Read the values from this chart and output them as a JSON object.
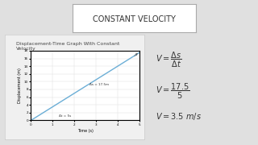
{
  "title": "CONSTANT VELOCITY",
  "bg_color": "#e0e0e0",
  "panel_color": "#f0f0f0",
  "graph_title": "Displacement-Time Graph With Constant\nVelocity",
  "xlabel": "Time (s)",
  "ylabel": "Displacement (m)",
  "x_data": [
    0,
    5
  ],
  "y_data": [
    0,
    17.5
  ],
  "x_ticks": [
    0,
    1,
    2,
    3,
    4,
    5
  ],
  "y_ticks": [
    0,
    2,
    4,
    6,
    8,
    10,
    12,
    14,
    16,
    18
  ],
  "line_color": "#6baed6",
  "annotation_ds": "Δs = 17.5m",
  "annotation_dt": "Δt = 5s",
  "rect_color": "#555555",
  "title_box_color": "#ffffff",
  "title_fontsize": 7,
  "graph_title_fontsize": 4.5,
  "formula_fontsize": 7,
  "text_color": "#333333"
}
